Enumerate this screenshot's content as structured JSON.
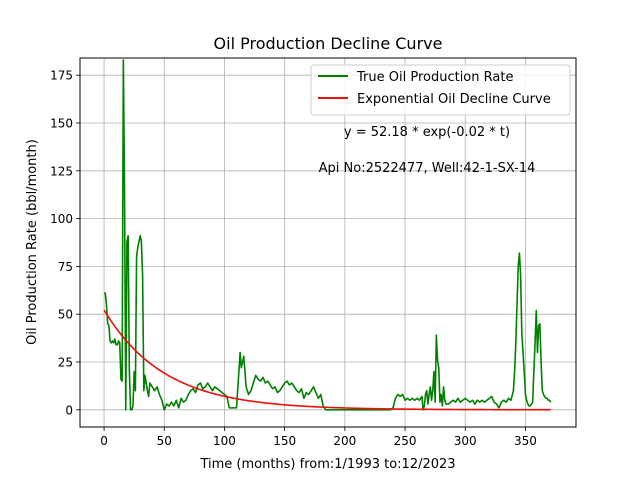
{
  "chart_data": {
    "type": "line",
    "title": "Oil Production Decline Curve",
    "xlabel": "Time (months) from:1/1993 to:12/2023",
    "ylabel": "Oil Production Rate (bbl/month)",
    "xlim": [
      -20,
      392
    ],
    "ylim": [
      -9,
      184
    ],
    "xticks": [
      0,
      50,
      100,
      150,
      200,
      250,
      300,
      350
    ],
    "yticks": [
      0,
      25,
      50,
      75,
      100,
      125,
      150,
      175
    ],
    "grid": true,
    "legend_position": "top-right",
    "annotations": [
      {
        "text": "y = 52.18 * exp(-0.02 * t)",
        "x": 270,
        "y": 150
      },
      {
        "text": "Api No:2522477, Well:42-1-SX-14",
        "x": 268,
        "y": 130
      }
    ],
    "series": [
      {
        "name": "True Oil Production Rate",
        "color": "#008000",
        "kind": "observed",
        "points": [
          [
            0,
            61
          ],
          [
            1,
            61
          ],
          [
            2,
            55
          ],
          [
            3,
            45
          ],
          [
            4,
            44
          ],
          [
            5,
            36
          ],
          [
            6,
            35
          ],
          [
            7,
            36
          ],
          [
            8,
            35
          ],
          [
            9,
            37
          ],
          [
            10,
            34
          ],
          [
            11,
            34
          ],
          [
            12,
            36
          ],
          [
            13,
            35
          ],
          [
            14,
            16
          ],
          [
            15,
            15
          ],
          [
            16,
            183
          ],
          [
            17,
            115
          ],
          [
            18,
            0
          ],
          [
            19,
            88
          ],
          [
            20,
            91
          ],
          [
            21,
            20
          ],
          [
            22,
            0
          ],
          [
            23,
            0
          ],
          [
            24,
            2
          ],
          [
            25,
            20
          ],
          [
            26,
            10
          ],
          [
            27,
            80
          ],
          [
            28,
            85
          ],
          [
            29,
            88
          ],
          [
            30,
            91
          ],
          [
            31,
            88
          ],
          [
            32,
            70
          ],
          [
            33,
            10
          ],
          [
            34,
            18
          ],
          [
            35,
            14
          ],
          [
            36,
            10
          ],
          [
            37,
            7
          ],
          [
            38,
            14
          ],
          [
            40,
            12
          ],
          [
            42,
            10
          ],
          [
            44,
            12
          ],
          [
            46,
            8
          ],
          [
            48,
            5
          ],
          [
            50,
            0
          ],
          [
            52,
            3
          ],
          [
            54,
            2
          ],
          [
            56,
            4
          ],
          [
            58,
            2
          ],
          [
            60,
            5
          ],
          [
            62,
            1
          ],
          [
            64,
            6
          ],
          [
            66,
            4
          ],
          [
            68,
            5
          ],
          [
            70,
            8
          ],
          [
            72,
            10
          ],
          [
            74,
            11
          ],
          [
            76,
            9
          ],
          [
            78,
            13
          ],
          [
            80,
            14
          ],
          [
            82,
            11
          ],
          [
            84,
            12
          ],
          [
            86,
            14
          ],
          [
            88,
            12
          ],
          [
            90,
            10
          ],
          [
            92,
            12
          ],
          [
            94,
            11
          ],
          [
            96,
            10
          ],
          [
            98,
            9
          ],
          [
            100,
            8
          ],
          [
            102,
            7
          ],
          [
            104,
            1
          ],
          [
            106,
            1
          ],
          [
            108,
            1
          ],
          [
            110,
            1
          ],
          [
            112,
            20
          ],
          [
            113,
            30
          ],
          [
            114,
            22
          ],
          [
            116,
            28
          ],
          [
            118,
            12
          ],
          [
            120,
            8
          ],
          [
            122,
            10
          ],
          [
            124,
            14
          ],
          [
            126,
            18
          ],
          [
            128,
            16
          ],
          [
            130,
            15
          ],
          [
            132,
            17
          ],
          [
            134,
            14
          ],
          [
            136,
            15
          ],
          [
            138,
            13
          ],
          [
            140,
            11
          ],
          [
            142,
            12
          ],
          [
            144,
            9
          ],
          [
            146,
            10
          ],
          [
            148,
            12
          ],
          [
            150,
            14
          ],
          [
            152,
            15
          ],
          [
            154,
            13
          ],
          [
            156,
            14
          ],
          [
            158,
            12
          ],
          [
            160,
            10
          ],
          [
            162,
            9
          ],
          [
            164,
            11
          ],
          [
            166,
            6
          ],
          [
            168,
            9
          ],
          [
            170,
            8
          ],
          [
            172,
            10
          ],
          [
            174,
            12
          ],
          [
            176,
            9
          ],
          [
            178,
            6
          ],
          [
            180,
            8
          ],
          [
            182,
            2
          ],
          [
            184,
            0
          ],
          [
            190,
            0
          ],
          [
            200,
            0
          ],
          [
            210,
            0
          ],
          [
            220,
            0
          ],
          [
            230,
            0
          ],
          [
            238,
            0
          ],
          [
            240,
            1
          ],
          [
            242,
            6
          ],
          [
            244,
            8
          ],
          [
            246,
            7
          ],
          [
            248,
            8
          ],
          [
            250,
            5
          ],
          [
            252,
            6
          ],
          [
            254,
            5
          ],
          [
            256,
            6
          ],
          [
            258,
            5
          ],
          [
            260,
            6
          ],
          [
            262,
            5
          ],
          [
            264,
            7
          ],
          [
            265,
            0
          ],
          [
            266,
            2
          ],
          [
            267,
            8
          ],
          [
            268,
            10
          ],
          [
            269,
            3
          ],
          [
            270,
            8
          ],
          [
            271,
            12
          ],
          [
            272,
            5
          ],
          [
            273,
            10
          ],
          [
            274,
            20
          ],
          [
            275,
            4
          ],
          [
            276,
            39
          ],
          [
            277,
            26
          ],
          [
            278,
            22
          ],
          [
            279,
            4
          ],
          [
            280,
            8
          ],
          [
            281,
            2
          ],
          [
            282,
            12
          ],
          [
            283,
            5
          ],
          [
            284,
            3
          ],
          [
            286,
            3
          ],
          [
            288,
            4
          ],
          [
            290,
            5
          ],
          [
            292,
            4
          ],
          [
            294,
            6
          ],
          [
            296,
            4
          ],
          [
            298,
            5
          ],
          [
            300,
            6
          ],
          [
            302,
            5
          ],
          [
            304,
            4
          ],
          [
            306,
            5
          ],
          [
            308,
            3
          ],
          [
            310,
            5
          ],
          [
            312,
            4
          ],
          [
            314,
            5
          ],
          [
            316,
            4
          ],
          [
            318,
            5
          ],
          [
            320,
            6
          ],
          [
            322,
            7
          ],
          [
            324,
            4
          ],
          [
            326,
            3
          ],
          [
            328,
            1
          ],
          [
            330,
            4
          ],
          [
            332,
            5
          ],
          [
            334,
            4
          ],
          [
            336,
            6
          ],
          [
            338,
            5
          ],
          [
            340,
            10
          ],
          [
            341,
            20
          ],
          [
            342,
            35
          ],
          [
            343,
            55
          ],
          [
            344,
            75
          ],
          [
            345,
            82
          ],
          [
            346,
            70
          ],
          [
            347,
            40
          ],
          [
            348,
            30
          ],
          [
            349,
            20
          ],
          [
            350,
            8
          ],
          [
            351,
            5
          ],
          [
            352,
            3
          ],
          [
            353,
            2
          ],
          [
            354,
            2
          ],
          [
            355,
            3
          ],
          [
            356,
            4
          ],
          [
            357,
            20
          ],
          [
            358,
            35
          ],
          [
            359,
            52
          ],
          [
            360,
            30
          ],
          [
            361,
            44
          ],
          [
            362,
            45
          ],
          [
            363,
            25
          ],
          [
            364,
            10
          ],
          [
            365,
            8
          ],
          [
            366,
            7
          ],
          [
            367,
            6
          ],
          [
            368,
            6
          ],
          [
            369,
            5
          ],
          [
            370,
            5
          ],
          [
            371,
            4
          ]
        ]
      },
      {
        "name": "Exponential Oil Decline Curve",
        "color": "#e8120c",
        "kind": "fit",
        "a": 52.18,
        "b": 0.02,
        "x_range": [
          0,
          371
        ]
      }
    ]
  }
}
